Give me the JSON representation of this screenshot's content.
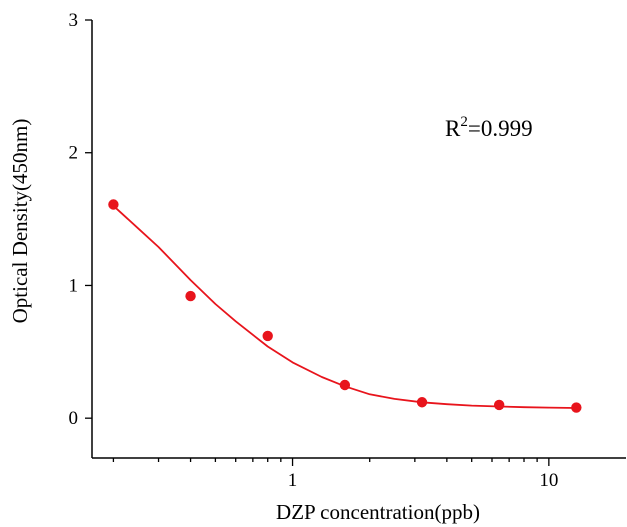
{
  "chart_data": {
    "type": "scatter",
    "xlabel": "DZP concentration(ppb)",
    "ylabel": "Optical Density(450nm)",
    "x_scale": "log",
    "xlim": [
      0.165,
      20
    ],
    "ylim": [
      -0.3,
      3
    ],
    "x_ticks": [
      1,
      10
    ],
    "x_tick_labels": [
      "1",
      "10"
    ],
    "y_ticks": [
      0,
      1,
      2,
      3
    ],
    "y_tick_labels": [
      "0",
      "1",
      "2",
      "3"
    ],
    "annotation": {
      "base": "R",
      "sup": "2",
      "rest": "=0.999"
    },
    "color": "#e8141c",
    "series": [
      {
        "kind": "points",
        "x": [
          0.2,
          0.4,
          0.8,
          1.6,
          3.2,
          6.4,
          12.8
        ],
        "y": [
          1.61,
          0.92,
          0.62,
          0.25,
          0.12,
          0.1,
          0.08
        ]
      },
      {
        "kind": "fit-curve",
        "x": [
          0.2,
          0.25,
          0.3,
          0.4,
          0.5,
          0.6,
          0.8,
          1.0,
          1.3,
          1.6,
          2.0,
          2.5,
          3.2,
          4.0,
          5.0,
          6.4,
          8.0,
          10.0,
          12.8
        ],
        "y": [
          1.6,
          1.43,
          1.29,
          1.04,
          0.86,
          0.73,
          0.54,
          0.42,
          0.31,
          0.24,
          0.18,
          0.145,
          0.12,
          0.105,
          0.095,
          0.088,
          0.083,
          0.08,
          0.077
        ]
      }
    ]
  }
}
